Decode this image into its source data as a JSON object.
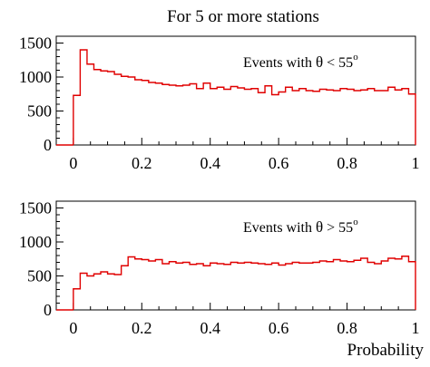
{
  "page_title": "For 5 or more stations",
  "xlabel": "Probability",
  "chart_data": [
    {
      "type": "histogram",
      "title": "For 5 or more stations",
      "annotation": {
        "prefix": "Events with ",
        "symbol": "θ",
        "relation": " < 55",
        "superscript": "o"
      },
      "xlim": [
        -0.05,
        1.0
      ],
      "ylim": [
        0,
        1600
      ],
      "x_ticks": [
        0,
        0.2,
        0.4,
        0.6,
        0.8,
        1
      ],
      "x_tick_labels": [
        "0",
        "0.2",
        "0.4",
        "0.6",
        "0.8",
        "1"
      ],
      "y_ticks": [
        0,
        500,
        1000,
        1500
      ],
      "y_tick_labels": [
        "0",
        "500",
        "1000",
        "1500"
      ],
      "bin_edges_start": 0.0,
      "bin_width": 0.02,
      "values": [
        730,
        1400,
        1190,
        1110,
        1090,
        1080,
        1040,
        1010,
        1000,
        960,
        950,
        920,
        910,
        890,
        880,
        870,
        880,
        900,
        830,
        910,
        830,
        850,
        820,
        860,
        840,
        820,
        830,
        770,
        870,
        740,
        780,
        850,
        800,
        830,
        800,
        790,
        820,
        810,
        800,
        830,
        820,
        800,
        810,
        830,
        800,
        800,
        850,
        810,
        830,
        750
      ]
    },
    {
      "type": "histogram",
      "annotation": {
        "prefix": "Events with ",
        "symbol": "θ",
        "relation": " > 55",
        "superscript": "o"
      },
      "xlabel": "Probability",
      "xlim": [
        -0.05,
        1.0
      ],
      "ylim": [
        0,
        1600
      ],
      "x_ticks": [
        0,
        0.2,
        0.4,
        0.6,
        0.8,
        1
      ],
      "x_tick_labels": [
        "0",
        "0.2",
        "0.4",
        "0.6",
        "0.8",
        "1"
      ],
      "y_ticks": [
        0,
        500,
        1000,
        1500
      ],
      "y_tick_labels": [
        "0",
        "500",
        "1000",
        "1500"
      ],
      "bin_edges_start": 0.0,
      "bin_width": 0.02,
      "values": [
        310,
        540,
        500,
        530,
        560,
        530,
        520,
        650,
        780,
        750,
        740,
        720,
        740,
        680,
        710,
        690,
        700,
        670,
        680,
        650,
        690,
        680,
        670,
        700,
        690,
        700,
        690,
        680,
        670,
        690,
        660,
        680,
        700,
        690,
        690,
        700,
        720,
        710,
        740,
        720,
        710,
        730,
        760,
        700,
        680,
        720,
        760,
        750,
        790,
        710
      ]
    }
  ]
}
